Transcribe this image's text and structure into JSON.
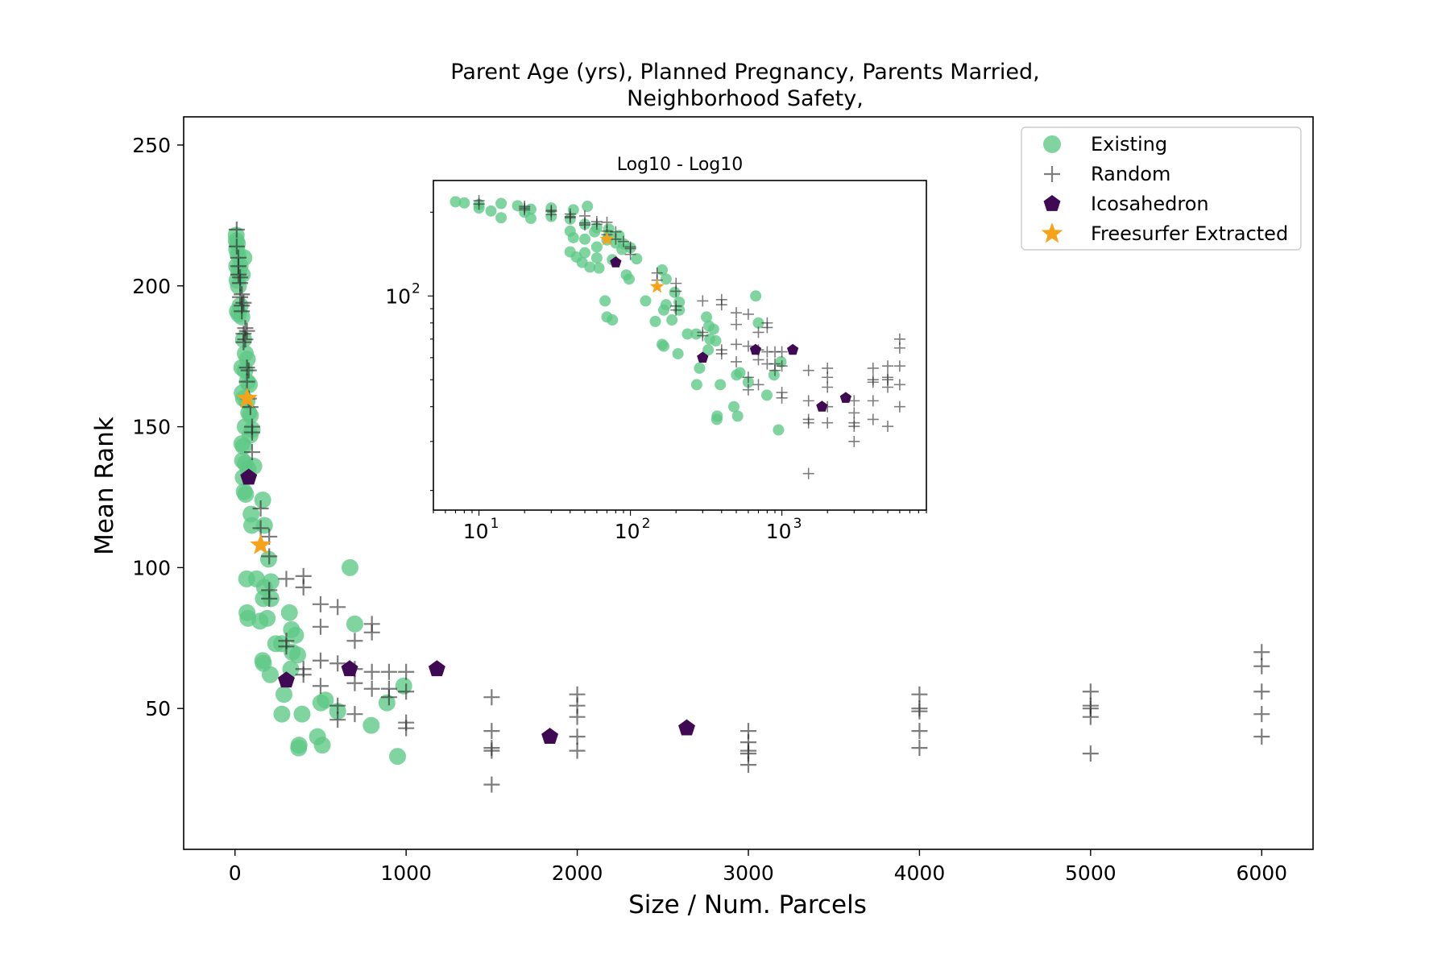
{
  "chart_data": [
    {
      "type": "scatter",
      "title": "Parent Age (yrs), Planned Pregnancy, Parents Married,\nNeighborhood Safety,",
      "xlabel": "Size / Num. Parcels",
      "ylabel": "Mean Rank",
      "xlim": [
        -300,
        6300
      ],
      "ylim": [
        0,
        260
      ],
      "xticks": [
        0,
        1000,
        2000,
        3000,
        4000,
        5000,
        6000
      ],
      "yticks": [
        50,
        100,
        150,
        200,
        250
      ],
      "grid": false,
      "legend_position": "top-right",
      "series": [
        {
          "name": "Existing",
          "color": "#5cc885",
          "marker": "circle",
          "points": [
            [
              7,
              218
            ],
            [
              8,
              216
            ],
            [
              10,
              213
            ],
            [
              14,
              215
            ],
            [
              18,
              211
            ],
            [
              10,
              207
            ],
            [
              22,
              205
            ],
            [
              30,
              207
            ],
            [
              42,
              204
            ],
            [
              52,
              210
            ],
            [
              12,
              202
            ],
            [
              20,
              200
            ],
            [
              30,
              193
            ],
            [
              14,
              191
            ],
            [
              22,
              190
            ],
            [
              40,
              189
            ],
            [
              50,
              181
            ],
            [
              60,
              176
            ],
            [
              72,
              174
            ],
            [
              40,
              171
            ],
            [
              58,
              170
            ],
            [
              72,
              166
            ],
            [
              84,
              165
            ],
            [
              42,
              162
            ],
            [
              50,
              160
            ],
            [
              70,
              159
            ],
            [
              80,
              155
            ],
            [
              90,
              154
            ],
            [
              60,
              150
            ],
            [
              100,
              149
            ],
            [
              88,
              147
            ],
            [
              40,
              144
            ],
            [
              50,
              143
            ],
            [
              44,
              138
            ],
            [
              60,
              137
            ],
            [
              76,
              135
            ],
            [
              110,
              136
            ],
            [
              48,
              132
            ],
            [
              54,
              127
            ],
            [
              62,
              126
            ],
            [
              94,
              119
            ],
            [
              98,
              115
            ],
            [
              162,
              124
            ],
            [
              172,
              115
            ],
            [
              196,
              103
            ],
            [
              68,
              96
            ],
            [
              126,
              96
            ],
            [
              172,
              93
            ],
            [
              210,
              95
            ],
            [
              70,
              84
            ],
            [
              76,
              82
            ],
            [
              146,
              81
            ],
            [
              188,
              82
            ],
            [
              166,
              89
            ],
            [
              210,
              89
            ],
            [
              238,
              73
            ],
            [
              272,
              73
            ],
            [
              318,
              84
            ],
            [
              330,
              78
            ],
            [
              354,
              76
            ],
            [
              366,
              69
            ],
            [
              162,
              67
            ],
            [
              166,
              66
            ],
            [
              206,
              62
            ],
            [
              286,
              55
            ],
            [
              326,
              64
            ],
            [
              334,
              70
            ],
            [
              274,
              48
            ],
            [
              392,
              48
            ],
            [
              374,
              37
            ],
            [
              372,
              36
            ],
            [
              482,
              40
            ],
            [
              510,
              37
            ],
            [
              502,
              52
            ],
            [
              528,
              53
            ],
            [
              600,
              49
            ],
            [
              672,
              100
            ],
            [
              700,
              80
            ],
            [
              796,
              44
            ],
            [
              888,
              52
            ],
            [
              950,
              33
            ],
            [
              986,
              58
            ]
          ]
        },
        {
          "name": "Random",
          "color": "#2d2d2d",
          "marker": "plus",
          "points": [
            [
              10,
              220
            ],
            [
              10,
              214
            ],
            [
              20,
              210
            ],
            [
              20,
              207
            ],
            [
              20,
              204
            ],
            [
              30,
              203
            ],
            [
              30,
              201
            ],
            [
              30,
              196
            ],
            [
              40,
              197
            ],
            [
              40,
              193
            ],
            [
              40,
              191
            ],
            [
              50,
              194
            ],
            [
              50,
              183
            ],
            [
              50,
              180
            ],
            [
              60,
              185
            ],
            [
              60,
              181
            ],
            [
              70,
              184
            ],
            [
              70,
              171
            ],
            [
              70,
              166
            ],
            [
              80,
              170
            ],
            [
              80,
              160
            ],
            [
              90,
              157
            ],
            [
              100,
              150
            ],
            [
              100,
              148
            ],
            [
              100,
              141
            ],
            [
              150,
              121
            ],
            [
              150,
              114
            ],
            [
              200,
              111
            ],
            [
              200,
              104
            ],
            [
              200,
              92
            ],
            [
              200,
              89
            ],
            [
              300,
              96
            ],
            [
              300,
              74
            ],
            [
              300,
              72
            ],
            [
              400,
              97
            ],
            [
              400,
              93
            ],
            [
              400,
              64
            ],
            [
              400,
              62
            ],
            [
              500,
              87
            ],
            [
              500,
              79
            ],
            [
              500,
              67
            ],
            [
              500,
              58
            ],
            [
              600,
              86
            ],
            [
              600,
              66
            ],
            [
              600,
              51
            ],
            [
              600,
              46
            ],
            [
              700,
              74
            ],
            [
              700,
              64
            ],
            [
              700,
              59
            ],
            [
              700,
              48
            ],
            [
              800,
              80
            ],
            [
              800,
              77
            ],
            [
              800,
              63
            ],
            [
              800,
              57
            ],
            [
              900,
              63
            ],
            [
              900,
              57
            ],
            [
              900,
              54
            ],
            [
              1000,
              63
            ],
            [
              1000,
              56
            ],
            [
              1000,
              45
            ],
            [
              1000,
              43
            ],
            [
              1500,
              54
            ],
            [
              1500,
              42
            ],
            [
              1500,
              36
            ],
            [
              1500,
              35
            ],
            [
              1500,
              23
            ],
            [
              2000,
              55
            ],
            [
              2000,
              51
            ],
            [
              2000,
              47
            ],
            [
              2000,
              40
            ],
            [
              2000,
              35
            ],
            [
              3000,
              42
            ],
            [
              3000,
              38
            ],
            [
              3000,
              35
            ],
            [
              3000,
              34
            ],
            [
              3000,
              30
            ],
            [
              4000,
              55
            ],
            [
              4000,
              50
            ],
            [
              4000,
              49
            ],
            [
              4000,
              42
            ],
            [
              4000,
              36
            ],
            [
              5000,
              56
            ],
            [
              5000,
              51
            ],
            [
              5000,
              50
            ],
            [
              5000,
              47
            ],
            [
              5000,
              34
            ],
            [
              6000,
              70
            ],
            [
              6000,
              65
            ],
            [
              6000,
              56
            ],
            [
              6000,
              48
            ],
            [
              6000,
              40
            ]
          ]
        },
        {
          "name": "Icosahedron",
          "color": "#3f0a53",
          "marker": "pentagon",
          "points": [
            [
              80,
              132
            ],
            [
              300,
              60
            ],
            [
              670,
              64
            ],
            [
              1180,
              64
            ],
            [
              1840,
              40
            ],
            [
              2640,
              43
            ]
          ]
        },
        {
          "name": "Freesurfer Extracted",
          "color": "#f5a31a",
          "marker": "star",
          "points": [
            [
              70,
              160
            ],
            [
              150,
              108
            ]
          ]
        }
      ]
    },
    {
      "type": "scatter",
      "title": "Log10 - Log10",
      "xscale": "log",
      "yscale": "log",
      "xlim": [
        5,
        9000
      ],
      "ylim": [
        17,
        260
      ],
      "xticks": [
        "10^1",
        "10^2",
        "10^3"
      ],
      "yticks": [
        "10^2"
      ],
      "legend_position": "none",
      "note": "inset showing the same four series on log10-log10 axes"
    }
  ],
  "legend": [
    {
      "label": "Existing",
      "marker": "circle",
      "color": "#5cc885"
    },
    {
      "label": "Random",
      "marker": "plus",
      "color": "#2d2d2d"
    },
    {
      "label": "Icosahedron",
      "marker": "pentagon",
      "color": "#3f0a53"
    },
    {
      "label": "Freesurfer Extracted",
      "marker": "star",
      "color": "#f5a31a"
    }
  ]
}
